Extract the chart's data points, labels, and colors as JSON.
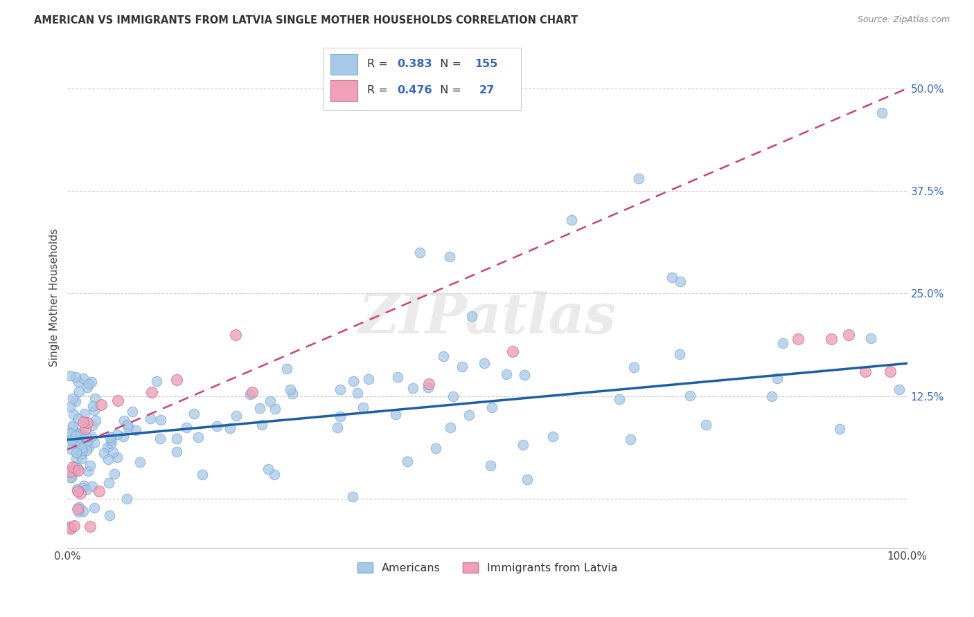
{
  "title": "AMERICAN VS IMMIGRANTS FROM LATVIA SINGLE MOTHER HOUSEHOLDS CORRELATION CHART",
  "source": "Source: ZipAtlas.com",
  "ylabel": "Single Mother Households",
  "xlim": [
    0,
    1.0
  ],
  "ylim": [
    -0.06,
    0.55
  ],
  "x_ticks": [
    0.0,
    0.2,
    0.4,
    0.6,
    0.8,
    1.0
  ],
  "x_tick_labels": [
    "0.0%",
    "",
    "",
    "",
    "",
    "100.0%"
  ],
  "y_ticks": [
    0.0,
    0.125,
    0.25,
    0.375,
    0.5
  ],
  "y_tick_labels": [
    "",
    "12.5%",
    "25.0%",
    "37.5%",
    "50.0%"
  ],
  "grid_color": "#cccccc",
  "background_color": "#ffffff",
  "american_color": "#a8c8e8",
  "american_edge_color": "#7aafd4",
  "american_line_color": "#1a5fa8",
  "latvian_color": "#f0a0b8",
  "latvian_edge_color": "#d07090",
  "latvian_line_color": "#d04070",
  "R_american": 0.383,
  "N_american": 155,
  "R_latvian": 0.476,
  "N_latvian": 27,
  "watermark": "ZIPatlas",
  "legend_labels": [
    "Americans",
    "Immigrants from Latvia"
  ],
  "am_line_x0": 0.0,
  "am_line_y0": 0.072,
  "am_line_x1": 1.0,
  "am_line_y1": 0.165,
  "lv_line_x0": 0.0,
  "lv_line_y0": 0.06,
  "lv_line_x1": 1.0,
  "lv_line_y1": 0.5
}
